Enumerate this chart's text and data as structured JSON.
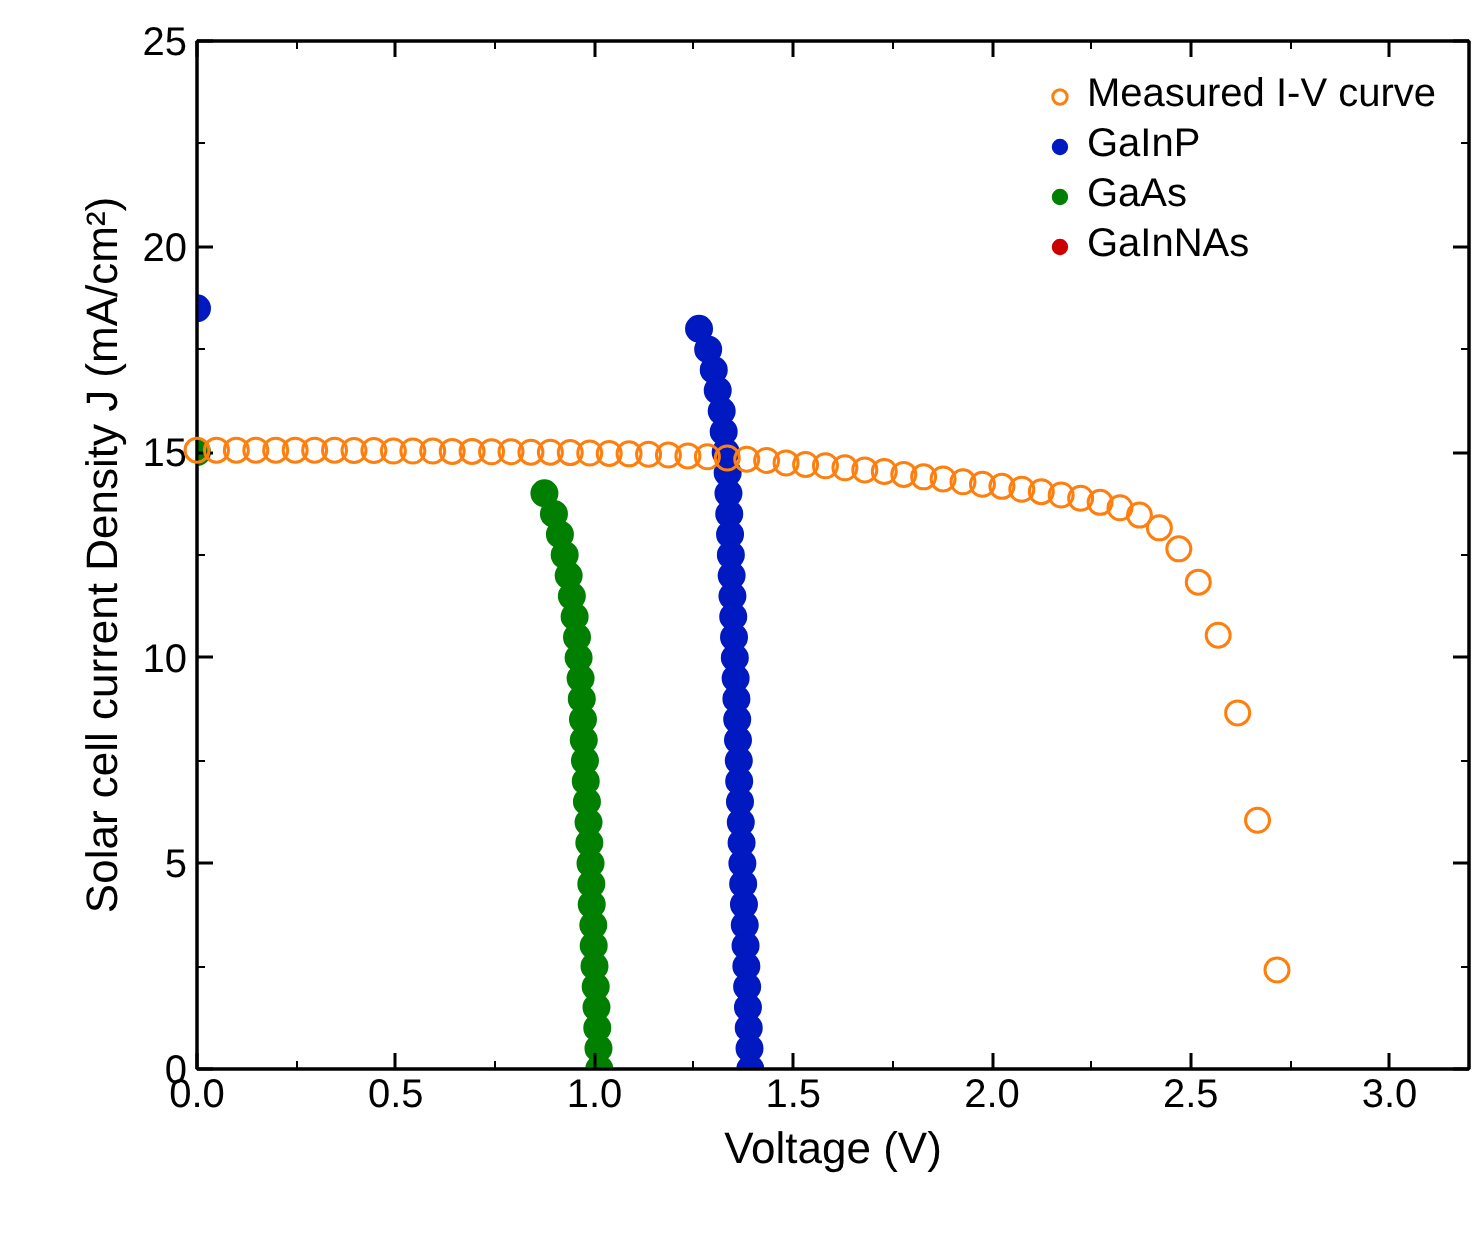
{
  "chart_data": {
    "type": "scatter",
    "xlabel": "Voltage (V)",
    "ylabel": "Solar cell current Density J (mA/cm²)",
    "xlim": [
      0,
      3.2
    ],
    "ylim": [
      0,
      25
    ],
    "xticks": [
      {
        "value": 0,
        "label": "0.0"
      },
      0.5,
      {
        "value": 1,
        "label": "1.0"
      },
      1.5,
      {
        "value": 2,
        "label": "2.0"
      },
      2.5,
      {
        "value": 3,
        "label": "3.0"
      }
    ],
    "yticks": [
      0,
      5,
      10,
      15,
      20,
      25
    ],
    "grid": false,
    "legend": "top right",
    "marker": "circle",
    "series": [
      {
        "name": "Measured I-V curve",
        "color": "#ff7f0e",
        "x": [
          0,
          0.049,
          0.099,
          0.148,
          0.198,
          0.247,
          0.296,
          0.346,
          0.395,
          0.445,
          0.494,
          0.543,
          0.593,
          0.642,
          0.692,
          0.741,
          0.79,
          0.84,
          0.889,
          0.939,
          0.988,
          1.037,
          1.087,
          1.136,
          1.186,
          1.235,
          1.284,
          1.334,
          1.383,
          1.433,
          1.482,
          1.531,
          1.581,
          1.63,
          1.68,
          1.729,
          1.778,
          1.828,
          1.877,
          1.927,
          1.976,
          2.025,
          2.075,
          2.124,
          2.174,
          2.223,
          2.272,
          2.322,
          2.371,
          2.421,
          2.47,
          2.519,
          2.569,
          2.618,
          2.668,
          2.717
        ],
        "values": [
          15.05,
          15.05,
          15.05,
          15.05,
          15.05,
          15.05,
          15.05,
          15.05,
          15.04,
          15.04,
          15.03,
          15.03,
          15.03,
          15.02,
          15.02,
          15.01,
          15.01,
          15.0,
          15.0,
          14.99,
          14.98,
          14.97,
          14.96,
          14.95,
          14.93,
          14.91,
          14.89,
          14.86,
          14.83,
          14.8,
          14.74,
          14.7,
          14.67,
          14.62,
          14.57,
          14.53,
          14.46,
          14.4,
          14.35,
          14.28,
          14.22,
          14.17,
          14.1,
          14.04,
          13.96,
          13.88,
          13.78,
          13.65,
          13.47,
          13.16,
          12.65,
          11.84,
          10.55,
          8.66,
          6.05,
          2.41
        ]
      },
      {
        "name": "GaInP",
        "color": "#0019c0",
        "x": [
          0,
          1.263,
          1.286,
          1.3,
          1.31,
          1.32,
          1.325,
          1.33,
          1.335,
          1.337,
          1.339,
          1.341,
          1.343,
          1.345,
          1.347,
          1.349,
          1.351,
          1.353,
          1.355,
          1.357,
          1.359,
          1.361,
          1.363,
          1.364,
          1.366,
          1.368,
          1.37,
          1.372,
          1.374,
          1.376,
          1.378,
          1.38,
          1.382,
          1.384,
          1.386,
          1.388,
          1.39,
          1.392
        ],
        "values": [
          18.5,
          18,
          17.5,
          17,
          16.5,
          16,
          15.5,
          15,
          14.5,
          14,
          13.5,
          13,
          12.5,
          12,
          11.5,
          11,
          10.5,
          10,
          9.5,
          9,
          8.5,
          8,
          7.5,
          7,
          6.5,
          6,
          5.5,
          5,
          4.5,
          4,
          3.5,
          3,
          2.5,
          2,
          1.5,
          1,
          0.5,
          0
        ]
      },
      {
        "name": "GaAs",
        "color": "#007f00",
        "x": [
          0,
          0.874,
          0.898,
          0.913,
          0.925,
          0.935,
          0.943,
          0.95,
          0.956,
          0.96,
          0.965,
          0.968,
          0.971,
          0.973,
          0.976,
          0.978,
          0.981,
          0.985,
          0.987,
          0.99,
          0.992,
          0.993,
          0.997,
          0.998,
          1.0,
          1.003,
          1.005,
          1.007,
          1.01,
          1.012
        ],
        "values": [
          15,
          14,
          13.5,
          13,
          12.5,
          12,
          11.5,
          11,
          10.5,
          10,
          9.5,
          9,
          8.5,
          8,
          7.5,
          7,
          6.5,
          6,
          5.5,
          5,
          4.5,
          4,
          3.5,
          3,
          2.5,
          2,
          1.5,
          1,
          0.5,
          0
        ]
      },
      {
        "name": "GaInNAs",
        "color": "#cc0000"
      }
    ]
  }
}
